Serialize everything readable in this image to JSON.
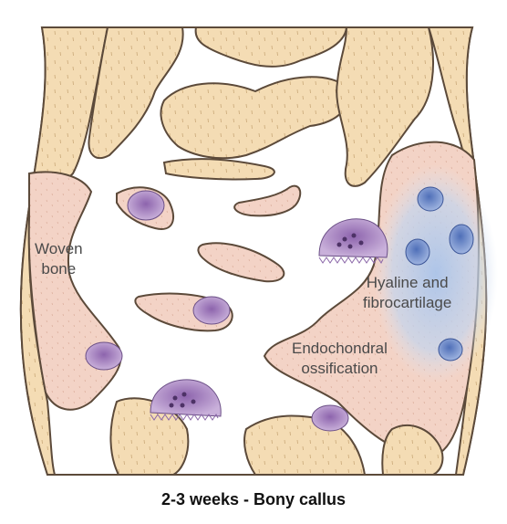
{
  "labels": {
    "woven_bone": [
      "Woven",
      "bone"
    ],
    "hyaline": [
      "Hyaline and",
      "fibrocartilage"
    ],
    "endochondral": [
      "Endochondral",
      "ossification"
    ]
  },
  "caption": "2-3 weeks - Bony callus",
  "colors": {
    "bone": "#f4dcb4",
    "woven": "#f3d3c6",
    "cartilage_glow": "#b7cdec",
    "cell": "#b594c8",
    "outline": "#5c4a3a"
  }
}
